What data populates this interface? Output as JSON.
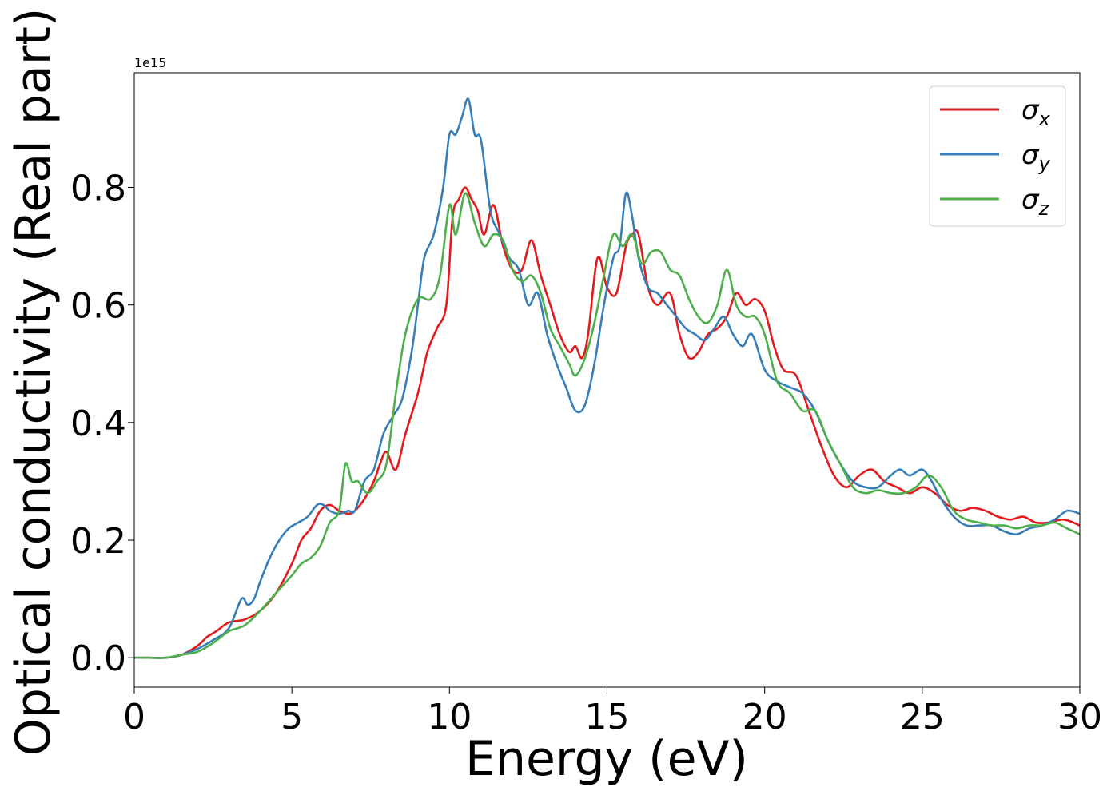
{
  "chart_data": {
    "type": "line",
    "xlabel": "Energy (eV)",
    "ylabel": "Optical conductivity (Real part)",
    "offset_label": "1e15",
    "xlim": [
      0,
      30
    ],
    "ylim": [
      -0.05,
      0.995
    ],
    "x_ticks": [
      0,
      5,
      10,
      15,
      20,
      25,
      30
    ],
    "x_tick_labels": [
      "0",
      "5",
      "10",
      "15",
      "20",
      "25",
      "30"
    ],
    "y_ticks": [
      0.0,
      0.2,
      0.4,
      0.6,
      0.8
    ],
    "y_tick_labels": [
      "0.0",
      "0.2",
      "0.4",
      "0.6",
      "0.8"
    ],
    "grid": false,
    "legend_position": "top-right",
    "series": [
      {
        "name": "σx",
        "symbol": "σ",
        "subscript": "x",
        "color": "#e41a1c",
        "x": [
          0,
          0.5,
          1,
          1.5,
          2,
          2.3,
          2.6,
          3,
          3.5,
          4,
          4.5,
          5,
          5.3,
          5.6,
          5.9,
          6.2,
          6.5,
          6.8,
          7,
          7.3,
          7.6,
          7.8,
          8,
          8.3,
          8.6,
          9,
          9.3,
          9.6,
          9.9,
          10.1,
          10.3,
          10.5,
          10.7,
          10.9,
          11.1,
          11.4,
          11.7,
          12,
          12.3,
          12.6,
          12.9,
          13.2,
          13.5,
          13.8,
          14,
          14.2,
          14.4,
          14.7,
          15,
          15.3,
          15.6,
          15.8,
          16,
          16.3,
          16.6,
          17,
          17.3,
          17.6,
          17.9,
          18.2,
          18.5,
          18.8,
          19.1,
          19.4,
          19.7,
          20,
          20.3,
          20.6,
          21,
          21.4,
          21.8,
          22.2,
          22.6,
          23,
          23.4,
          23.8,
          24.2,
          24.6,
          25,
          25.4,
          25.8,
          26.2,
          26.6,
          27,
          27.4,
          27.8,
          28.2,
          28.6,
          29,
          29.5,
          30
        ],
        "y": [
          0.0,
          0.0,
          0.0,
          0.005,
          0.02,
          0.035,
          0.045,
          0.06,
          0.065,
          0.08,
          0.11,
          0.16,
          0.2,
          0.22,
          0.25,
          0.26,
          0.25,
          0.245,
          0.25,
          0.27,
          0.3,
          0.33,
          0.35,
          0.32,
          0.38,
          0.45,
          0.52,
          0.56,
          0.6,
          0.75,
          0.78,
          0.8,
          0.78,
          0.76,
          0.72,
          0.77,
          0.7,
          0.66,
          0.66,
          0.71,
          0.65,
          0.6,
          0.55,
          0.52,
          0.53,
          0.51,
          0.55,
          0.68,
          0.63,
          0.62,
          0.7,
          0.72,
          0.72,
          0.63,
          0.6,
          0.62,
          0.55,
          0.51,
          0.52,
          0.55,
          0.56,
          0.58,
          0.62,
          0.6,
          0.61,
          0.59,
          0.53,
          0.49,
          0.48,
          0.42,
          0.36,
          0.31,
          0.29,
          0.31,
          0.32,
          0.3,
          0.29,
          0.28,
          0.29,
          0.28,
          0.26,
          0.25,
          0.255,
          0.25,
          0.24,
          0.235,
          0.24,
          0.23,
          0.23,
          0.235,
          0.225
        ]
      },
      {
        "name": "σy",
        "symbol": "σ",
        "subscript": "y",
        "color": "#377eb8",
        "x": [
          0,
          0.5,
          1,
          1.5,
          2,
          2.5,
          3,
          3.4,
          3.6,
          3.8,
          4,
          4.3,
          4.6,
          4.9,
          5.2,
          5.5,
          5.8,
          6,
          6.2,
          6.5,
          6.8,
          7,
          7.3,
          7.6,
          7.9,
          8.2,
          8.5,
          8.8,
          9,
          9.2,
          9.5,
          9.8,
          10,
          10.2,
          10.4,
          10.6,
          10.8,
          11,
          11.3,
          11.6,
          11.9,
          12.2,
          12.5,
          12.8,
          13.1,
          13.4,
          13.7,
          14,
          14.3,
          14.6,
          14.9,
          15.2,
          15.4,
          15.6,
          15.8,
          16,
          16.3,
          16.6,
          16.9,
          17.2,
          17.5,
          17.8,
          18.1,
          18.4,
          18.7,
          19,
          19.3,
          19.6,
          20,
          20.4,
          20.8,
          21.2,
          21.6,
          22,
          22.4,
          22.8,
          23.2,
          23.6,
          24,
          24.3,
          24.6,
          25,
          25.3,
          25.6,
          26,
          26.4,
          26.8,
          27.2,
          27.6,
          28,
          28.4,
          28.8,
          29.2,
          29.6,
          30
        ],
        "y": [
          0.0,
          0.0,
          0.0,
          0.005,
          0.015,
          0.03,
          0.05,
          0.1,
          0.09,
          0.1,
          0.13,
          0.17,
          0.2,
          0.22,
          0.23,
          0.24,
          0.26,
          0.26,
          0.25,
          0.245,
          0.25,
          0.25,
          0.3,
          0.32,
          0.38,
          0.41,
          0.44,
          0.52,
          0.6,
          0.68,
          0.72,
          0.8,
          0.89,
          0.89,
          0.92,
          0.95,
          0.89,
          0.88,
          0.76,
          0.72,
          0.68,
          0.66,
          0.6,
          0.62,
          0.55,
          0.5,
          0.46,
          0.42,
          0.43,
          0.5,
          0.6,
          0.68,
          0.7,
          0.79,
          0.75,
          0.68,
          0.63,
          0.62,
          0.6,
          0.58,
          0.56,
          0.55,
          0.54,
          0.56,
          0.58,
          0.55,
          0.53,
          0.55,
          0.49,
          0.47,
          0.46,
          0.45,
          0.42,
          0.37,
          0.33,
          0.3,
          0.29,
          0.29,
          0.31,
          0.32,
          0.31,
          0.32,
          0.3,
          0.27,
          0.24,
          0.225,
          0.225,
          0.225,
          0.215,
          0.21,
          0.22,
          0.225,
          0.235,
          0.25,
          0.245
        ]
      },
      {
        "name": "σz",
        "symbol": "σ",
        "subscript": "z",
        "color": "#4daf4a",
        "x": [
          0,
          0.5,
          1,
          1.5,
          2,
          2.5,
          3,
          3.5,
          4,
          4.5,
          5,
          5.3,
          5.6,
          5.9,
          6.2,
          6.5,
          6.7,
          6.9,
          7.1,
          7.4,
          7.7,
          8,
          8.3,
          8.6,
          9,
          9.4,
          9.7,
          10,
          10.2,
          10.5,
          10.8,
          11.1,
          11.4,
          11.7,
          12,
          12.3,
          12.6,
          12.9,
          13.2,
          13.5,
          13.8,
          14,
          14.3,
          14.6,
          14.9,
          15.2,
          15.5,
          15.8,
          16.1,
          16.4,
          16.7,
          17,
          17.3,
          17.6,
          17.9,
          18.2,
          18.5,
          18.8,
          19.1,
          19.4,
          19.7,
          20,
          20.4,
          20.8,
          21.2,
          21.6,
          22,
          22.4,
          22.8,
          23.2,
          23.6,
          24,
          24.4,
          24.8,
          25.2,
          25.6,
          26,
          26.4,
          26.8,
          27.2,
          27.6,
          28,
          28.4,
          28.8,
          29.2,
          29.6,
          30
        ],
        "y": [
          0.0,
          0.0,
          0.0,
          0.005,
          0.01,
          0.025,
          0.045,
          0.055,
          0.08,
          0.11,
          0.14,
          0.16,
          0.17,
          0.19,
          0.23,
          0.25,
          0.33,
          0.3,
          0.3,
          0.28,
          0.3,
          0.33,
          0.45,
          0.55,
          0.61,
          0.61,
          0.65,
          0.77,
          0.72,
          0.79,
          0.74,
          0.7,
          0.72,
          0.71,
          0.66,
          0.64,
          0.65,
          0.62,
          0.56,
          0.53,
          0.5,
          0.48,
          0.51,
          0.57,
          0.65,
          0.72,
          0.7,
          0.72,
          0.67,
          0.69,
          0.69,
          0.66,
          0.65,
          0.61,
          0.58,
          0.57,
          0.6,
          0.66,
          0.6,
          0.58,
          0.58,
          0.55,
          0.47,
          0.45,
          0.42,
          0.42,
          0.37,
          0.33,
          0.29,
          0.28,
          0.285,
          0.28,
          0.28,
          0.29,
          0.31,
          0.29,
          0.25,
          0.235,
          0.23,
          0.225,
          0.225,
          0.22,
          0.225,
          0.225,
          0.23,
          0.22,
          0.21
        ]
      }
    ]
  }
}
